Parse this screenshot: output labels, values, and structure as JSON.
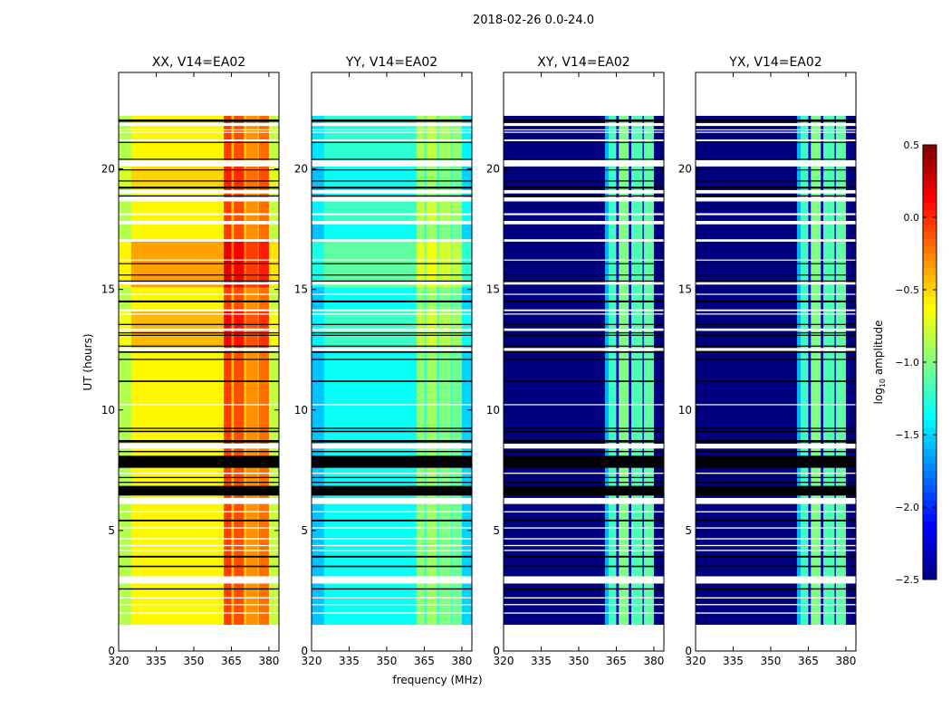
{
  "chart_data": {
    "type": "heatmap",
    "title": "2018-02-26 0.0-24.0",
    "xlabel": "frequency (MHz)",
    "ylabel": "UT (hours)",
    "xlim": [
      320,
      384
    ],
    "ylim": [
      0,
      24
    ],
    "xticks": [
      "320",
      "335",
      "350",
      "365",
      "380"
    ],
    "yticks": [
      "0",
      "5",
      "10",
      "15",
      "20"
    ],
    "data_time_range": [
      1.1,
      22.2
    ],
    "colorbar": {
      "label_prefix": "log",
      "label_sub": "10",
      "label_suffix": " amplitude",
      "range": [
        -2.5,
        0.5
      ],
      "ticks": [
        "0.5",
        "0.0",
        "−0.5",
        "−1.0",
        "−1.5",
        "−2.0",
        "−2.5"
      ],
      "colormap": "jet"
    },
    "flags": [
      {
        "t": [
          21.95,
          22.05
        ],
        "kind": "black"
      },
      {
        "t": [
          21.78,
          21.9
        ],
        "kind": "white"
      },
      {
        "t": [
          21.6,
          21.64
        ],
        "kind": "white"
      },
      {
        "t": [
          21.5,
          21.54
        ],
        "kind": "white"
      },
      {
        "t": [
          21.15,
          21.22
        ],
        "kind": "white"
      },
      {
        "t": [
          21.08,
          21.12
        ],
        "kind": "black"
      },
      {
        "t": [
          20.38,
          20.42
        ],
        "kind": "black"
      },
      {
        "t": [
          20.1,
          20.36
        ],
        "kind": "white"
      },
      {
        "t": [
          19.94,
          19.98
        ],
        "kind": "black"
      },
      {
        "t": [
          19.48,
          19.52
        ],
        "kind": "black"
      },
      {
        "t": [
          19.18,
          19.26
        ],
        "kind": "black"
      },
      {
        "t": [
          18.98,
          19.12
        ],
        "kind": "white"
      },
      {
        "t": [
          18.86,
          18.9
        ],
        "kind": "black"
      },
      {
        "t": [
          18.65,
          18.82
        ],
        "kind": "white"
      },
      {
        "t": [
          18.08,
          18.16
        ],
        "kind": "white"
      },
      {
        "t": [
          17.7,
          17.84
        ],
        "kind": "white"
      },
      {
        "t": [
          16.98,
          17.08
        ],
        "kind": "white"
      },
      {
        "t": [
          16.2,
          16.24
        ],
        "kind": "white"
      },
      {
        "t": [
          16.05,
          16.09
        ],
        "kind": "black"
      },
      {
        "t": [
          15.58,
          15.62
        ],
        "kind": "black"
      },
      {
        "t": [
          15.33,
          15.37
        ],
        "kind": "black"
      },
      {
        "t": [
          15.2,
          15.3
        ],
        "kind": "white"
      },
      {
        "t": [
          14.78,
          14.82
        ],
        "kind": "white"
      },
      {
        "t": [
          14.46,
          14.54
        ],
        "kind": "black"
      },
      {
        "t": [
          14.1,
          14.17
        ],
        "kind": "white"
      },
      {
        "t": [
          13.96,
          14.0
        ],
        "kind": "white"
      },
      {
        "t": [
          13.53,
          13.57
        ],
        "kind": "black"
      },
      {
        "t": [
          13.28,
          13.38
        ],
        "kind": "white"
      },
      {
        "t": [
          13.18,
          13.22
        ],
        "kind": "black"
      },
      {
        "t": [
          13.08,
          13.12
        ],
        "kind": "black"
      },
      {
        "t": [
          12.63,
          12.67
        ],
        "kind": "black"
      },
      {
        "t": [
          12.45,
          12.57
        ],
        "kind": "white"
      },
      {
        "t": [
          12.37,
          12.43
        ],
        "kind": "black"
      },
      {
        "t": [
          12.08,
          12.12
        ],
        "kind": "black"
      },
      {
        "t": [
          11.16,
          11.22
        ],
        "kind": "black"
      },
      {
        "t": [
          10.2,
          10.24
        ],
        "kind": "white"
      },
      {
        "t": [
          9.22,
          9.26
        ],
        "kind": "black"
      },
      {
        "t": [
          9.08,
          9.14
        ],
        "kind": "black"
      },
      {
        "t": [
          8.65,
          8.75
        ],
        "kind": "black"
      },
      {
        "t": [
          8.4,
          8.6
        ],
        "kind": "white"
      },
      {
        "t": [
          8.25,
          8.3
        ],
        "kind": "black"
      },
      {
        "t": [
          7.6,
          8.1
        ],
        "kind": "black"
      },
      {
        "t": [
          7.35,
          7.4
        ],
        "kind": "white"
      },
      {
        "t": [
          7.18,
          7.22
        ],
        "kind": "black"
      },
      {
        "t": [
          6.98,
          7.02
        ],
        "kind": "black"
      },
      {
        "t": [
          6.45,
          6.85
        ],
        "kind": "black"
      },
      {
        "t": [
          6.1,
          6.35
        ],
        "kind": "white"
      },
      {
        "t": [
          5.75,
          5.8
        ],
        "kind": "white"
      },
      {
        "t": [
          5.38,
          5.45
        ],
        "kind": "black"
      },
      {
        "t": [
          5.08,
          5.13
        ],
        "kind": "white"
      },
      {
        "t": [
          4.63,
          4.68
        ],
        "kind": "white"
      },
      {
        "t": [
          4.35,
          4.4
        ],
        "kind": "white"
      },
      {
        "t": [
          4.15,
          4.2
        ],
        "kind": "white"
      },
      {
        "t": [
          3.88,
          3.95
        ],
        "kind": "black"
      },
      {
        "t": [
          3.48,
          3.54
        ],
        "kind": "black"
      },
      {
        "t": [
          2.8,
          3.1
        ],
        "kind": "white"
      },
      {
        "t": [
          2.55,
          2.6
        ],
        "kind": "black"
      },
      {
        "t": [
          2.18,
          2.23
        ],
        "kind": "white"
      },
      {
        "t": [
          1.9,
          1.95
        ],
        "kind": "white"
      },
      {
        "t": [
          1.55,
          1.6
        ],
        "kind": "white"
      }
    ],
    "panels": [
      {
        "title": "XX, V14=EA02",
        "freq_profile": [
          [
            320,
            325,
            -0.85
          ],
          [
            325,
            362,
            -0.6
          ],
          [
            362,
            365,
            -0.05
          ],
          [
            365,
            366,
            -0.45
          ],
          [
            366,
            370,
            -0.1
          ],
          [
            370,
            371,
            -0.45
          ],
          [
            371,
            375.5,
            -0.3
          ],
          [
            375.5,
            376,
            -0.45
          ],
          [
            376,
            380,
            -0.2
          ],
          [
            380,
            384,
            -0.8
          ]
        ],
        "time_mods": [
          [
            15.1,
            17.0,
            0.25
          ],
          [
            12.6,
            14.1,
            0.18
          ],
          [
            19.2,
            20.1,
            0.1
          ]
        ]
      },
      {
        "title": "YY, V14=EA02",
        "freq_profile": [
          [
            320,
            325,
            -1.55
          ],
          [
            325,
            362,
            -1.35
          ],
          [
            362,
            365,
            -0.95
          ],
          [
            365,
            366,
            -1.2
          ],
          [
            366,
            370,
            -0.9
          ],
          [
            370,
            371,
            -1.2
          ],
          [
            371,
            375.5,
            -1.0
          ],
          [
            375.5,
            376,
            -1.2
          ],
          [
            376,
            380,
            -1.05
          ],
          [
            380,
            384,
            -1.5
          ]
        ],
        "time_mods": [
          [
            15.1,
            17.0,
            0.25
          ],
          [
            12.6,
            14.1,
            0.15
          ],
          [
            17.8,
            18.8,
            0.15
          ],
          [
            20.4,
            22.2,
            0.1
          ]
        ]
      },
      {
        "title": "XY, V14=EA02",
        "freq_profile": [
          [
            320,
            360.5,
            -2.5
          ],
          [
            360.5,
            362,
            -1.6
          ],
          [
            362,
            365,
            -1.2
          ],
          [
            365,
            366,
            -2.3
          ],
          [
            366,
            370,
            -1.0
          ],
          [
            370,
            371,
            -2.3
          ],
          [
            371,
            375.5,
            -1.15
          ],
          [
            375.5,
            376,
            -2.3
          ],
          [
            376,
            380,
            -1.1
          ],
          [
            380,
            384,
            -2.5
          ]
        ],
        "time_mods": []
      },
      {
        "title": "YX, V14=EA02",
        "freq_profile": [
          [
            320,
            360.5,
            -2.5
          ],
          [
            360.5,
            362,
            -1.6
          ],
          [
            362,
            365,
            -1.2
          ],
          [
            365,
            366,
            -2.3
          ],
          [
            366,
            370,
            -1.0
          ],
          [
            370,
            371,
            -2.3
          ],
          [
            371,
            375.5,
            -1.15
          ],
          [
            375.5,
            376,
            -2.3
          ],
          [
            376,
            380,
            -1.1
          ],
          [
            380,
            384,
            -2.5
          ]
        ],
        "time_mods": []
      }
    ]
  }
}
